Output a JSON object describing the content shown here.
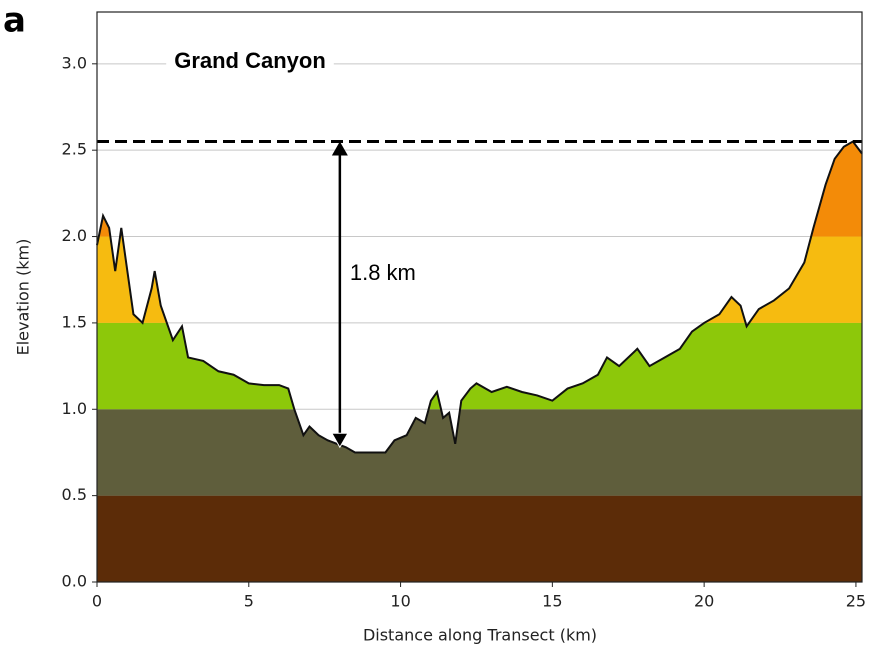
{
  "chart_data": {
    "type": "area",
    "panel_label": "a",
    "title": "Grand Canyon",
    "xlabel": "Distance along Transect (km)",
    "ylabel": "Elevation (km)",
    "xlim": [
      0,
      25.2
    ],
    "ylim": [
      0,
      3.3
    ],
    "xticks": [
      0,
      5,
      10,
      15,
      20,
      25
    ],
    "yticks": [
      {
        "value": 0,
        "label": "0.0"
      },
      {
        "value": 0.5,
        "label": "0.5"
      },
      {
        "value": 1,
        "label": "1.0"
      },
      {
        "value": 1.5,
        "label": "1.5"
      },
      {
        "value": 2,
        "label": "2.0"
      },
      {
        "value": 2.5,
        "label": "2.5"
      },
      {
        "value": 3,
        "label": "3.0"
      }
    ],
    "grid": true,
    "x": [
      0,
      0.2,
      0.4,
      0.6,
      0.8,
      1.0,
      1.2,
      1.5,
      1.8,
      1.9,
      2.1,
      2.5,
      2.8,
      3.0,
      3.5,
      4.0,
      4.5,
      5.0,
      5.5,
      6.0,
      6.3,
      6.5,
      6.8,
      7.0,
      7.3,
      7.6,
      7.9,
      8.2,
      8.5,
      9.0,
      9.5,
      9.8,
      10.2,
      10.5,
      10.8,
      11.0,
      11.2,
      11.4,
      11.6,
      11.8,
      12.0,
      12.3,
      12.5,
      13.0,
      13.5,
      14.0,
      14.5,
      15.0,
      15.5,
      16.0,
      16.5,
      16.8,
      17.2,
      17.8,
      18.2,
      18.7,
      19.2,
      19.6,
      20.0,
      20.5,
      20.9,
      21.2,
      21.4,
      21.8,
      22.3,
      22.8,
      23.3,
      23.6,
      24.0,
      24.3,
      24.6,
      24.9,
      25.2
    ],
    "series": [
      {
        "name": "Elevation",
        "color": "#111111",
        "values": [
          1.95,
          2.12,
          2.05,
          1.8,
          2.05,
          1.8,
          1.55,
          1.5,
          1.7,
          1.8,
          1.6,
          1.4,
          1.48,
          1.3,
          1.28,
          1.22,
          1.2,
          1.15,
          1.14,
          1.14,
          1.12,
          1.0,
          0.85,
          0.9,
          0.85,
          0.82,
          0.8,
          0.78,
          0.75,
          0.75,
          0.75,
          0.82,
          0.85,
          0.95,
          0.92,
          1.05,
          1.1,
          0.95,
          0.98,
          0.8,
          1.05,
          1.12,
          1.15,
          1.1,
          1.13,
          1.1,
          1.08,
          1.05,
          1.12,
          1.15,
          1.2,
          1.3,
          1.25,
          1.35,
          1.25,
          1.3,
          1.35,
          1.45,
          1.5,
          1.55,
          1.65,
          1.6,
          1.48,
          1.58,
          1.63,
          1.7,
          1.85,
          2.05,
          2.3,
          2.45,
          2.52,
          2.55,
          2.48
        ]
      }
    ],
    "bands": [
      {
        "range": [
          0,
          0.5
        ],
        "color": "#5c2c08"
      },
      {
        "range": [
          0.5,
          1.0
        ],
        "color": "#5f5e3c"
      },
      {
        "range": [
          1.0,
          1.5
        ],
        "color": "#8dc80a"
      },
      {
        "range": [
          1.5,
          2.0
        ],
        "color": "#f6bb10"
      },
      {
        "range": [
          2.0,
          2.6
        ],
        "color": "#f38b08"
      }
    ],
    "reference_line": 2.55,
    "arrow": {
      "x": 8,
      "from": 2.55,
      "to": 0.78,
      "label": "1.8 km"
    }
  }
}
